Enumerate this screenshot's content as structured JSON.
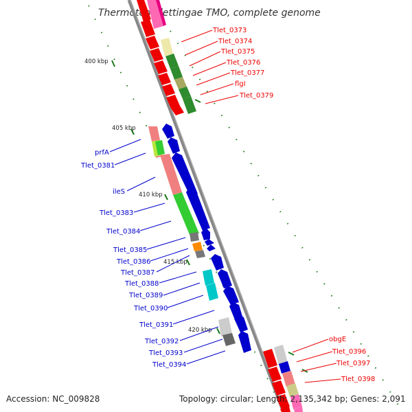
{
  "title": "Thermotoga lettingae TMO, complete genome",
  "footer": {
    "accession": "Accession: NC_009828",
    "topology": "Topology: circular; Length: 2,135,342 bp; Genes: 2,091"
  },
  "colors": {
    "forward": "#ee0000",
    "reverse": "#0000cc",
    "backbone": "#888888",
    "scale": "#1a7a1a"
  },
  "scale_marks": [
    "400 kbp",
    "405 kbp",
    "410 kbp",
    "415 kbp",
    "420 kbp"
  ],
  "forward_labels": [
    "Tlet_0373",
    "Tlet_0374",
    "Tlet_0375",
    "Tlet_0376",
    "Tlet_0377",
    "flgI",
    "Tlet_0379",
    "obgE",
    "Tlet_0396",
    "Tlet_0397",
    "Tlet_0398"
  ],
  "reverse_labels": [
    "prfA",
    "Tlet_0381",
    "ileS",
    "Tlet_0383",
    "Tlet_0384",
    "Tlet_0385",
    "Tlet_0386",
    "Tlet_0387",
    "Tlet_0388",
    "Tlet_0389",
    "Tlet_0390",
    "Tlet_0391",
    "Tlet_0392",
    "Tlet_0393",
    "Tlet_0394"
  ]
}
